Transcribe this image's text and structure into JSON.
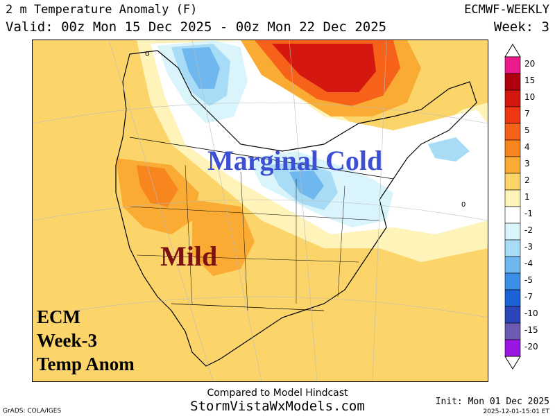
{
  "header": {
    "title": "2 m Temperature Anomaly (F)",
    "valid": "Valid: 00z Mon 15 Dec 2025 - 00z Mon 22 Dec 2025",
    "model": "ECMWF-WEEKLY",
    "week": "Week: 3"
  },
  "annotations": {
    "marginal_cold": "Marginal Cold",
    "mild": "Mild",
    "ecm_lines": [
      "ECM",
      "Week-3",
      "Temp Anom"
    ]
  },
  "contour_labels": [
    "0",
    "0"
  ],
  "colorbar": {
    "labels": [
      "20",
      "15",
      "10",
      "7",
      "5",
      "4",
      "3",
      "2",
      "1",
      "-1",
      "-2",
      "-3",
      "-4",
      "-5",
      "-7",
      "-10",
      "-15",
      "-20"
    ],
    "colors": [
      "#ec1b8c",
      "#b0000e",
      "#d4170f",
      "#ee3713",
      "#f6621a",
      "#f8861f",
      "#faab34",
      "#fbd56a",
      "#fef3b8",
      "#ffffff",
      "#d9f4fb",
      "#a8dbf5",
      "#6fb8ef",
      "#3c8fe6",
      "#1d63d8",
      "#2b46b8",
      "#6c5ab4",
      "#9a17e3"
    ]
  },
  "footer": {
    "line1": "Compared to Model Hindcast",
    "line2": "StormVistaWxModels.com",
    "credit": "GrADS: COLA/IGES",
    "init": "Init: Mon 01 Dec 2025",
    "timestamp": "2025-12-01-15:01 ET"
  }
}
